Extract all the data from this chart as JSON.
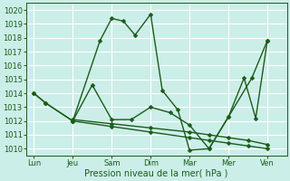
{
  "background_color": "#cceee8",
  "grid_color": "#ffffff",
  "line_color": "#1a5c1a",
  "markersize": 2.5,
  "linewidth": 1.0,
  "xlabel": "Pression niveau de la mer( hPa )",
  "xlabel_fontsize": 7,
  "tick_fontsize": 6,
  "ylim": [
    1009.5,
    1020.5
  ],
  "yticks": [
    1010,
    1011,
    1012,
    1013,
    1014,
    1015,
    1016,
    1017,
    1018,
    1019,
    1020
  ],
  "x_labels": [
    "Lun",
    "Jeu",
    "Sam",
    "Dim",
    "Mar",
    "Mer",
    "Ven"
  ],
  "x_ticks": [
    0,
    1,
    2,
    3,
    4,
    5,
    6
  ],
  "xlim": [
    -0.2,
    6.5
  ],
  "line1_x": [
    0,
    0.3,
    1.0,
    1.7,
    2.0,
    2.3,
    2.6,
    3.0,
    3.3,
    3.7,
    4.0,
    4.5,
    5.0,
    5.6,
    6.0
  ],
  "line1_y": [
    1014.0,
    1013.3,
    1012.0,
    1017.8,
    1019.4,
    1019.2,
    1018.2,
    1019.7,
    1014.2,
    1012.8,
    1009.9,
    1010.0,
    1012.3,
    1015.1,
    1017.8
  ],
  "line2_x": [
    1.0,
    2.0,
    3.0,
    4.0,
    4.5,
    5.0,
    5.5,
    6.0
  ],
  "line2_y": [
    1012.0,
    1011.6,
    1011.2,
    1010.8,
    1010.6,
    1010.4,
    1010.2,
    1010.0
  ],
  "line3_x": [
    1.0,
    2.0,
    3.0,
    4.0,
    4.5,
    5.0,
    5.5,
    6.0
  ],
  "line3_y": [
    1012.1,
    1011.8,
    1011.5,
    1011.2,
    1011.0,
    1010.8,
    1010.6,
    1010.3
  ],
  "line4_x": [
    0,
    0.3,
    1.0,
    1.5,
    2.0,
    2.5,
    3.0,
    3.5,
    4.0,
    4.5,
    5.0,
    5.4,
    5.7,
    6.0
  ],
  "line4_y": [
    1014.0,
    1013.3,
    1012.0,
    1014.6,
    1012.1,
    1012.1,
    1013.0,
    1012.6,
    1011.7,
    1010.0,
    1012.3,
    1015.1,
    1012.2,
    1017.8
  ]
}
